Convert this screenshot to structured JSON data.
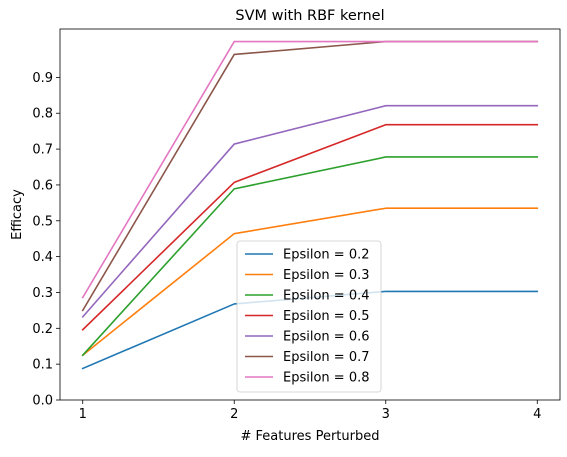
{
  "chart_data": {
    "type": "line",
    "title": "SVM with RBF kernel",
    "xlabel": "# Features Perturbed",
    "ylabel": "Efficacy",
    "x": [
      1,
      2,
      3,
      4
    ],
    "xlim": [
      0.85,
      4.15
    ],
    "ylim": [
      0.0,
      1.035
    ],
    "xticks": [
      1,
      2,
      3,
      4
    ],
    "yticks": [
      0.0,
      0.1,
      0.2,
      0.3,
      0.4,
      0.5,
      0.6,
      0.7,
      0.8,
      0.9
    ],
    "grid": false,
    "legend_position": "lower-center",
    "series": [
      {
        "name": "Epsilon = 0.2",
        "color": "#1f77b4",
        "values": [
          0.088,
          0.268,
          0.303,
          0.303
        ]
      },
      {
        "name": "Epsilon = 0.3",
        "color": "#ff7f0e",
        "values": [
          0.125,
          0.464,
          0.535,
          0.535
        ]
      },
      {
        "name": "Epsilon = 0.4",
        "color": "#2ca02c",
        "values": [
          0.125,
          0.589,
          0.678,
          0.678
        ]
      },
      {
        "name": "Epsilon = 0.5",
        "color": "#d62728",
        "values": [
          0.196,
          0.607,
          0.768,
          0.768
        ]
      },
      {
        "name": "Epsilon = 0.6",
        "color": "#9467bd",
        "values": [
          0.232,
          0.714,
          0.821,
          0.821
        ]
      },
      {
        "name": "Epsilon = 0.7",
        "color": "#8c564b",
        "values": [
          0.25,
          0.964,
          1.0,
          1.0
        ]
      },
      {
        "name": "Epsilon = 0.8",
        "color": "#e377c2",
        "values": [
          0.286,
          1.0,
          1.0,
          1.0
        ]
      }
    ]
  }
}
